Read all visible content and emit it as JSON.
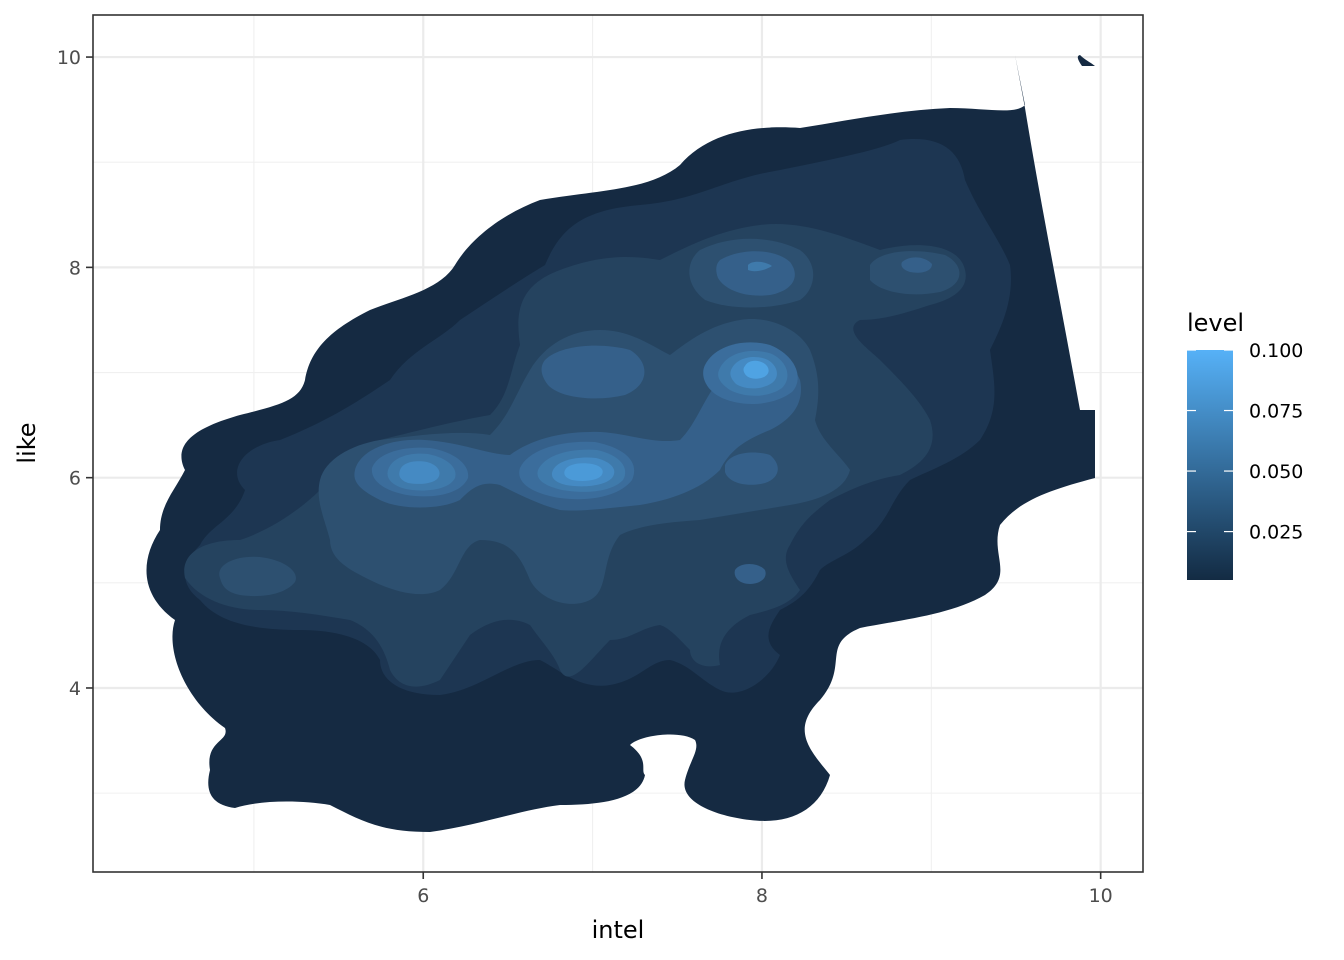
{
  "chart_data": {
    "type": "heatmap",
    "subtype": "filled-density-contour",
    "title": "",
    "xlabel": "intel",
    "ylabel": "like",
    "xlim": [
      4.05,
      10.25
    ],
    "ylim": [
      2.25,
      10.4
    ],
    "x_ticks": [
      6,
      8,
      10
    ],
    "y_ticks": [
      4,
      6,
      8,
      10
    ],
    "x_tick_labels": [
      "6",
      "8",
      "10"
    ],
    "y_tick_labels": [
      "4",
      "6",
      "8",
      "10"
    ],
    "grid": true,
    "theme": "bw",
    "legend": {
      "title": "level",
      "position": "right",
      "range": [
        0.005,
        0.1
      ],
      "breaks": [
        0.025,
        0.05,
        0.075,
        0.1
      ],
      "break_labels": [
        "0.025",
        "0.050",
        "0.075",
        "0.100"
      ],
      "low_color": "#132B43",
      "high_color": "#56B1F7"
    },
    "density_peaks": [
      {
        "x": 6,
        "y": 6,
        "level": 0.068
      },
      {
        "x": 7,
        "y": 6,
        "level": 0.082
      },
      {
        "x": 8,
        "y": 7,
        "level": 0.09
      },
      {
        "x": 8,
        "y": 8,
        "level": 0.06
      },
      {
        "x": 7,
        "y": 7,
        "level": 0.055
      },
      {
        "x": 9,
        "y": 8,
        "level": 0.04
      },
      {
        "x": 5,
        "y": 5,
        "level": 0.038
      },
      {
        "x": 7,
        "y": 5,
        "level": 0.04
      },
      {
        "x": 8,
        "y": 6,
        "level": 0.05
      },
      {
        "x": 8,
        "y": 5,
        "level": 0.035
      },
      {
        "x": 6,
        "y": 5,
        "level": 0.03
      },
      {
        "x": 6,
        "y": 3,
        "level": 0.012
      },
      {
        "x": 8,
        "y": 3,
        "level": 0.012
      },
      {
        "x": 5,
        "y": 3,
        "level": 0.01
      },
      {
        "x": 5,
        "y": 4,
        "level": 0.012
      },
      {
        "x": 10,
        "y": 6,
        "level": 0.01
      },
      {
        "x": 9,
        "y": 9,
        "level": 0.01
      }
    ]
  }
}
